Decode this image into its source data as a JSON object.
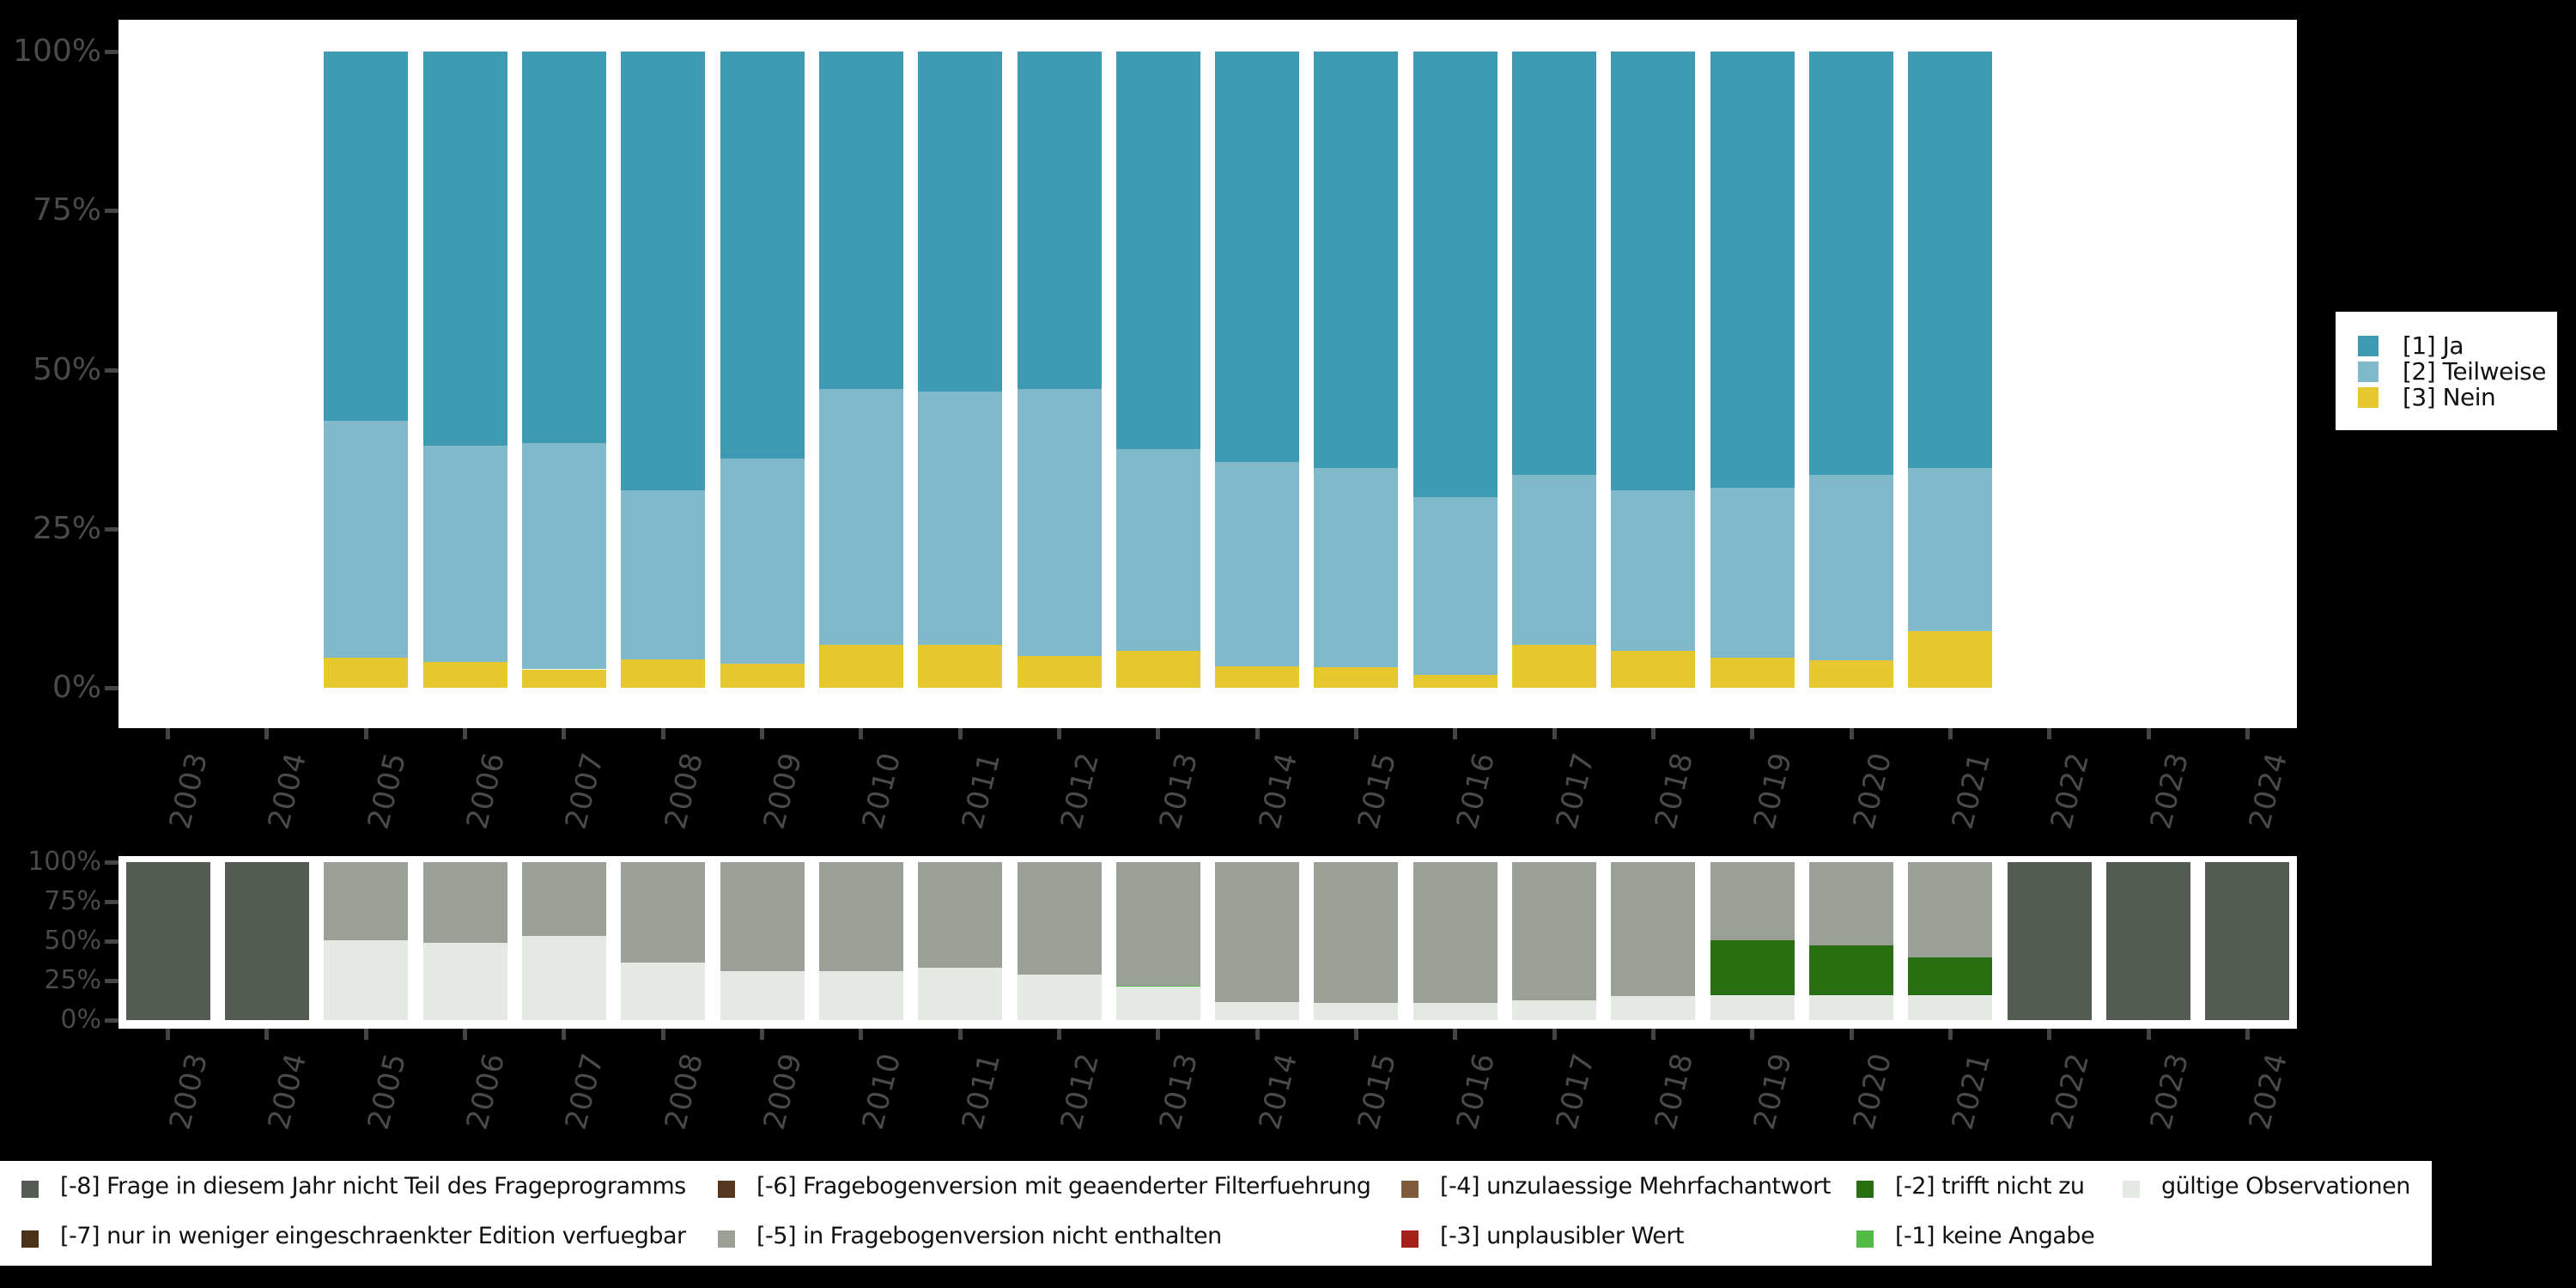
{
  "chart_data": [
    {
      "id": "answer-distribution",
      "type": "bar",
      "stacked": true,
      "grid": false,
      "legend_position": "right",
      "ylim": [
        0,
        100
      ],
      "ytick_values": [
        100,
        75,
        50,
        25,
        0
      ],
      "ytick_labels": [
        "100%",
        "75%",
        "50%",
        "25%",
        "0%"
      ],
      "categories": [
        "2003",
        "2004",
        "2005",
        "2006",
        "2007",
        "2008",
        "2009",
        "2010",
        "2011",
        "2012",
        "2013",
        "2014",
        "2015",
        "2016",
        "2017",
        "2018",
        "2019",
        "2020",
        "2021",
        "2022",
        "2023",
        "2024"
      ],
      "series": [
        {
          "name": "[1] Ja",
          "color": "#3e99b2",
          "values": [
            null,
            null,
            58,
            62,
            61.5,
            69,
            64,
            53,
            53.5,
            53,
            62.5,
            64.5,
            65.5,
            70,
            66.5,
            69,
            68.5,
            66.5,
            65.5,
            null,
            null,
            null
          ]
        },
        {
          "name": "[2] Teilweise",
          "color": "#80b9c9",
          "values": [
            null,
            null,
            37.3,
            33.9,
            35.6,
            26.5,
            32.2,
            40.3,
            39.8,
            42,
            31.7,
            32.1,
            31.2,
            28,
            26.7,
            25.2,
            26.8,
            29.2,
            25.6,
            null,
            null,
            null
          ]
        },
        {
          "name": "[3] Nein",
          "color": "#e6c72e",
          "values": [
            null,
            null,
            4.7,
            4.1,
            2.9,
            4.5,
            3.8,
            6.7,
            6.7,
            5,
            5.8,
            3.4,
            3.3,
            2,
            6.8,
            5.8,
            4.7,
            4.3,
            8.9,
            null,
            null,
            null
          ]
        }
      ]
    },
    {
      "id": "missings-distribution",
      "type": "bar",
      "stacked": true,
      "grid": false,
      "legend_position": "bottom",
      "ylim": [
        0,
        100
      ],
      "ytick_values": [
        100,
        75,
        50,
        25,
        0
      ],
      "ytick_labels": [
        "100%",
        "75%",
        "50%",
        "25%",
        "0%"
      ],
      "categories": [
        "2003",
        "2004",
        "2005",
        "2006",
        "2007",
        "2008",
        "2009",
        "2010",
        "2011",
        "2012",
        "2013",
        "2014",
        "2015",
        "2016",
        "2017",
        "2018",
        "2019",
        "2020",
        "2021",
        "2022",
        "2023",
        "2024"
      ],
      "series": [
        {
          "name": "[-8] Frage in diesem Jahr nicht Teil des Frageprogramms",
          "color": "#545b53",
          "values": [
            100,
            100,
            0,
            0,
            0,
            0,
            0,
            0,
            0,
            0,
            0,
            0,
            0,
            0,
            0,
            0,
            0,
            0,
            0,
            100,
            100,
            100
          ]
        },
        {
          "name": "[-5] in Fragebogenversion nicht enthalten",
          "color": "#9aa096",
          "values": [
            0,
            0,
            49.5,
            51,
            47,
            63.5,
            69,
            69,
            67,
            71,
            78,
            88.5,
            89,
            89,
            87.5,
            85,
            49.5,
            52.5,
            60.5,
            0,
            0,
            0
          ]
        },
        {
          "name": "[-2] trifft nicht zu",
          "color": "#286f12",
          "values": [
            0,
            0,
            0,
            0,
            0,
            0,
            0,
            0,
            0,
            0,
            0,
            0,
            0,
            0,
            0,
            0,
            34.5,
            31.5,
            23.5,
            0,
            0,
            0
          ]
        },
        {
          "name": "[-1] keine Angabe",
          "color": "#52ba45",
          "values": [
            0,
            0,
            0,
            0,
            0,
            0,
            0,
            0,
            0,
            0,
            1,
            0,
            0,
            0,
            0,
            0,
            0,
            0,
            0,
            0,
            0,
            0
          ]
        },
        {
          "name": "gültige Observationen",
          "color": "#e5e9e3",
          "values": [
            0,
            0,
            50.5,
            49,
            53,
            36.5,
            31,
            31,
            33,
            29,
            21,
            11.5,
            11,
            11,
            12.5,
            15,
            16,
            16,
            16,
            0,
            0,
            0
          ]
        }
      ]
    }
  ],
  "top_legend": {
    "items": [
      {
        "label": "[1] Ja",
        "color": "#3e99b2"
      },
      {
        "label": "[2] Teilweise",
        "color": "#80b9c9"
      },
      {
        "label": "[3] Nein",
        "color": "#e6c72e"
      }
    ]
  },
  "bottom_legend": {
    "rows": [
      [
        {
          "label": "[-8] Frage in diesem Jahr nicht Teil des Frageprogramms",
          "color": "#545b53"
        },
        {
          "label": "[-6] Fragebogenversion mit geaenderter Filterfuehrung",
          "color": "#54371e"
        },
        {
          "label": "[-4] unzulaessige Mehrfachantwort",
          "color": "#7f5d3b"
        },
        {
          "label": "[-2] trifft nicht zu",
          "color": "#286f12"
        },
        {
          "label": "gültige Observationen",
          "color": "#e5e9e3"
        }
      ],
      [
        {
          "label": "[-7] nur in weniger eingeschraenkter Edition verfuegbar",
          "color": "#4a3118"
        },
        {
          "label": "[-5] in Fragebogenversion nicht enthalten",
          "color": "#9aa096"
        },
        {
          "label": "[-3] unplausibler Wert",
          "color": "#a52019"
        },
        {
          "label": "[-1] keine Angabe",
          "color": "#52ba45"
        }
      ]
    ]
  }
}
